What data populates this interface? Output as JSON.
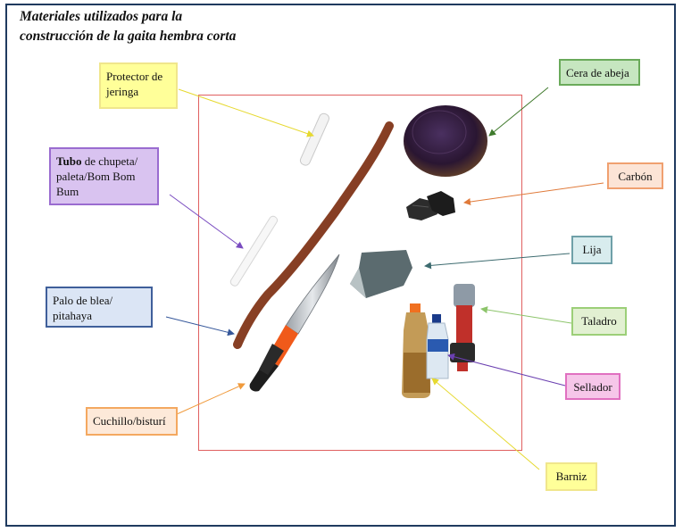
{
  "title": {
    "line1": "Materiales utilizados para la",
    "line2": "construcción de la gaita hembra corta"
  },
  "labels": {
    "protector": "Protector de jeringa",
    "tubo_bold": "Tubo",
    "tubo_rest": " de chupeta/ paleta/Bom Bom Bum",
    "palo": "Palo de blea/ pitahaya",
    "cuchillo": "Cuchillo/bisturí",
    "cera": "Cera de abeja",
    "carbon": "Carbón",
    "lija": "Lija",
    "taladro": "Taladro",
    "sellador": "Sellador",
    "barniz": "Barniz"
  },
  "colors": {
    "protector": "#ffff99",
    "tubo": "#d9c3f0",
    "palo": "#dbe5f5",
    "cuchillo": "#fde9d9",
    "cera": "#c6e6c0",
    "carbon": "#fce4d6",
    "lija": "#d8ecee",
    "taladro": "#e2f0d2",
    "sellador": "#f6c6e9",
    "barniz": "#ffff99"
  }
}
